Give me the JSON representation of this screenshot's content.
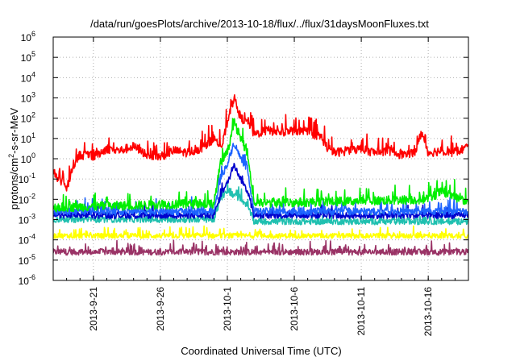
{
  "chart_data": {
    "type": "line",
    "title": "/data/run/goesPlots/archive/2013-10-18/flux/../flux/31daysMoonFluxes.txt",
    "xlabel": "Coordinated Universal Time (UTC)",
    "ylabel": {
      "base": "protons/cm",
      "sup": "2",
      "rest": "-s-sr-MeV"
    },
    "yscale": "log",
    "ylim_exp": [
      -6,
      6
    ],
    "ytick_labels": [
      "10",
      "10",
      "10",
      "10",
      "10",
      "10",
      "10",
      "10",
      "10",
      "10",
      "10",
      "10",
      "10"
    ],
    "ytick_exps": [
      "-6",
      "-5",
      "-4",
      "-3",
      "-2",
      "-1",
      "0",
      "1",
      "2",
      "3",
      "4",
      "5",
      "6"
    ],
    "xlim": [
      "2013-09-18",
      "2013-10-19"
    ],
    "xtick_labels": [
      "2013-9-21",
      "2013-9-26",
      "2013-10-1",
      "2013-10-6",
      "2013-10-11",
      "2013-10-16"
    ],
    "xtick_dates": [
      "2013-09-21",
      "2013-09-26",
      "2013-10-01",
      "2013-10-06",
      "2013-10-11",
      "2013-10-16"
    ],
    "grid": true,
    "legend": "none",
    "series": [
      {
        "color": "#ff0000",
        "baseline_exp": 0.35,
        "noise": 0.45,
        "event_peak_exp": 3.0,
        "points": [
          [
            "2013-09-18",
            -0.6
          ],
          [
            "2013-09-18.6",
            -1.2
          ],
          [
            "2013-09-19",
            -1.5
          ],
          [
            "2013-09-19.5",
            -0.3
          ],
          [
            "2013-09-20",
            0.2
          ],
          [
            "2013-09-21",
            0.1
          ],
          [
            "2013-09-22",
            0.5
          ],
          [
            "2013-09-23",
            0.4
          ],
          [
            "2013-09-24",
            0.6
          ],
          [
            "2013-09-25",
            0.2
          ],
          [
            "2013-09-26",
            0.1
          ],
          [
            "2013-09-27",
            0.4
          ],
          [
            "2013-09-28",
            0.3
          ],
          [
            "2013-09-29",
            0.5
          ],
          [
            "2013-09-30",
            1.0
          ],
          [
            "2013-09-30.6",
            0.6
          ],
          [
            "2013-10-01",
            1.8
          ],
          [
            "2013-10-01.5",
            3.0
          ],
          [
            "2013-10-02",
            2.0
          ],
          [
            "2013-10-02.6",
            1.8
          ],
          [
            "2013-10-03",
            1.2
          ],
          [
            "2013-10-04",
            1.4
          ],
          [
            "2013-10-05",
            1.3
          ],
          [
            "2013-10-06",
            1.4
          ],
          [
            "2013-10-07",
            1.3
          ],
          [
            "2013-10-08",
            1.1
          ],
          [
            "2013-10-08.5",
            0.5
          ],
          [
            "2013-10-09",
            0.3
          ],
          [
            "2013-10-10",
            0.4
          ],
          [
            "2013-10-11",
            0.5
          ],
          [
            "2013-10-12",
            0.3
          ],
          [
            "2013-10-13",
            0.4
          ],
          [
            "2013-10-14",
            0.2
          ],
          [
            "2013-10-15",
            0.3
          ],
          [
            "2013-10-15.5",
            1.3
          ],
          [
            "2013-10-16",
            0.3
          ],
          [
            "2013-10-17",
            0.4
          ],
          [
            "2013-10-18",
            0.3
          ],
          [
            "2013-10-19",
            0.6
          ]
        ]
      },
      {
        "color": "#00ee00",
        "baseline_exp": -2.1,
        "noise": 0.45,
        "event_peak_exp": 1.8,
        "points": [
          [
            "2013-09-18",
            -2.4
          ],
          [
            "2013-09-30",
            -2.2
          ],
          [
            "2013-09-30.5",
            -0.2
          ],
          [
            "2013-10-01",
            0.3
          ],
          [
            "2013-10-01.5",
            1.8
          ],
          [
            "2013-10-02",
            1.0
          ],
          [
            "2013-10-02.5",
            0.3
          ],
          [
            "2013-10-03",
            -2.2
          ],
          [
            "2013-10-16",
            -2.0
          ],
          [
            "2013-10-17",
            -1.6
          ],
          [
            "2013-10-19",
            -2.2
          ]
        ]
      },
      {
        "color": "#1e64ff",
        "baseline_exp": -2.6,
        "noise": 0.35,
        "event_peak_exp": 0.8,
        "points": [
          [
            "2013-09-18",
            -2.6
          ],
          [
            "2013-09-30",
            -2.6
          ],
          [
            "2013-09-30.5",
            -0.9
          ],
          [
            "2013-10-01",
            -0.3
          ],
          [
            "2013-10-01.5",
            0.8
          ],
          [
            "2013-10-02",
            0.0
          ],
          [
            "2013-10-02.5",
            -0.5
          ],
          [
            "2013-10-03",
            -2.6
          ],
          [
            "2013-10-19",
            -2.6
          ]
        ]
      },
      {
        "color": "#0000cc",
        "baseline_exp": -2.8,
        "noise": 0.3,
        "event_peak_exp": -0.3,
        "points": [
          [
            "2013-09-18",
            -2.8
          ],
          [
            "2013-09-30",
            -2.8
          ],
          [
            "2013-09-30.5",
            -1.8
          ],
          [
            "2013-10-01",
            -1.2
          ],
          [
            "2013-10-01.5",
            -0.3
          ],
          [
            "2013-10-02",
            -1.0
          ],
          [
            "2013-10-02.5",
            -1.6
          ],
          [
            "2013-10-03",
            -2.8
          ],
          [
            "2013-10-19",
            -2.8
          ]
        ]
      },
      {
        "color": "#20c0b0",
        "baseline_exp": -3.0,
        "noise": 0.3,
        "event_peak_exp": -1.6,
        "points": [
          [
            "2013-09-18",
            -3.0
          ],
          [
            "2013-09-30",
            -3.0
          ],
          [
            "2013-09-30.5",
            -2.0
          ],
          [
            "2013-10-01",
            -1.6
          ],
          [
            "2013-10-01.5",
            -1.8
          ],
          [
            "2013-10-02",
            -2.0
          ],
          [
            "2013-10-02.5",
            -2.3
          ],
          [
            "2013-10-03",
            -3.1
          ],
          [
            "2013-10-19",
            -3.1
          ]
        ]
      },
      {
        "color": "#ffff00",
        "baseline_exp": -3.8,
        "noise": 0.25,
        "event_peak_exp": -3.6,
        "points": [
          [
            "2013-09-18",
            -3.8
          ],
          [
            "2013-10-19",
            -3.8
          ]
        ]
      },
      {
        "color": "#9a3366",
        "baseline_exp": -4.6,
        "noise": 0.3,
        "event_peak_exp": -4.3,
        "points": [
          [
            "2013-09-18",
            -4.6
          ],
          [
            "2013-10-19",
            -4.6
          ]
        ]
      }
    ]
  }
}
